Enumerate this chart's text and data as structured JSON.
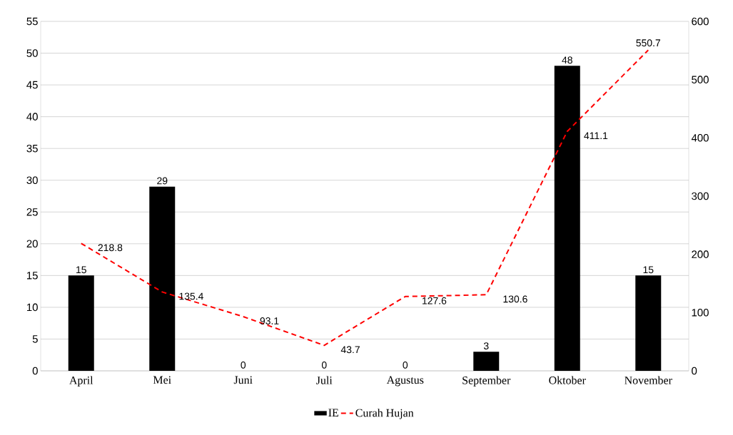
{
  "chart_data": {
    "type": "bar",
    "categories": [
      "April",
      "Mei",
      "Juni",
      "Juli",
      "Agustus",
      "September",
      "Oktober",
      "November"
    ],
    "series": [
      {
        "name": "IE",
        "color": "#000000",
        "values": [
          15,
          29,
          0,
          0,
          0,
          3,
          48,
          15
        ]
      },
      {
        "name": "Curah Hujan",
        "type": "line",
        "axis": "y2",
        "color": "#ff0000",
        "line_style": "dashed",
        "values": [
          218.8,
          135.4,
          93.1,
          43.7,
          127.6,
          130.6,
          411.1,
          550.7
        ]
      }
    ],
    "ylim": [
      0,
      55
    ],
    "yticks": [
      0,
      5,
      10,
      15,
      20,
      25,
      30,
      35,
      40,
      45,
      50,
      55
    ],
    "y2lim": [
      0,
      600
    ],
    "y2ticks": [
      0,
      100,
      200,
      300,
      400,
      500,
      600
    ],
    "grid": "y",
    "legend": "bottom",
    "data_labels": true,
    "marker": "none"
  }
}
